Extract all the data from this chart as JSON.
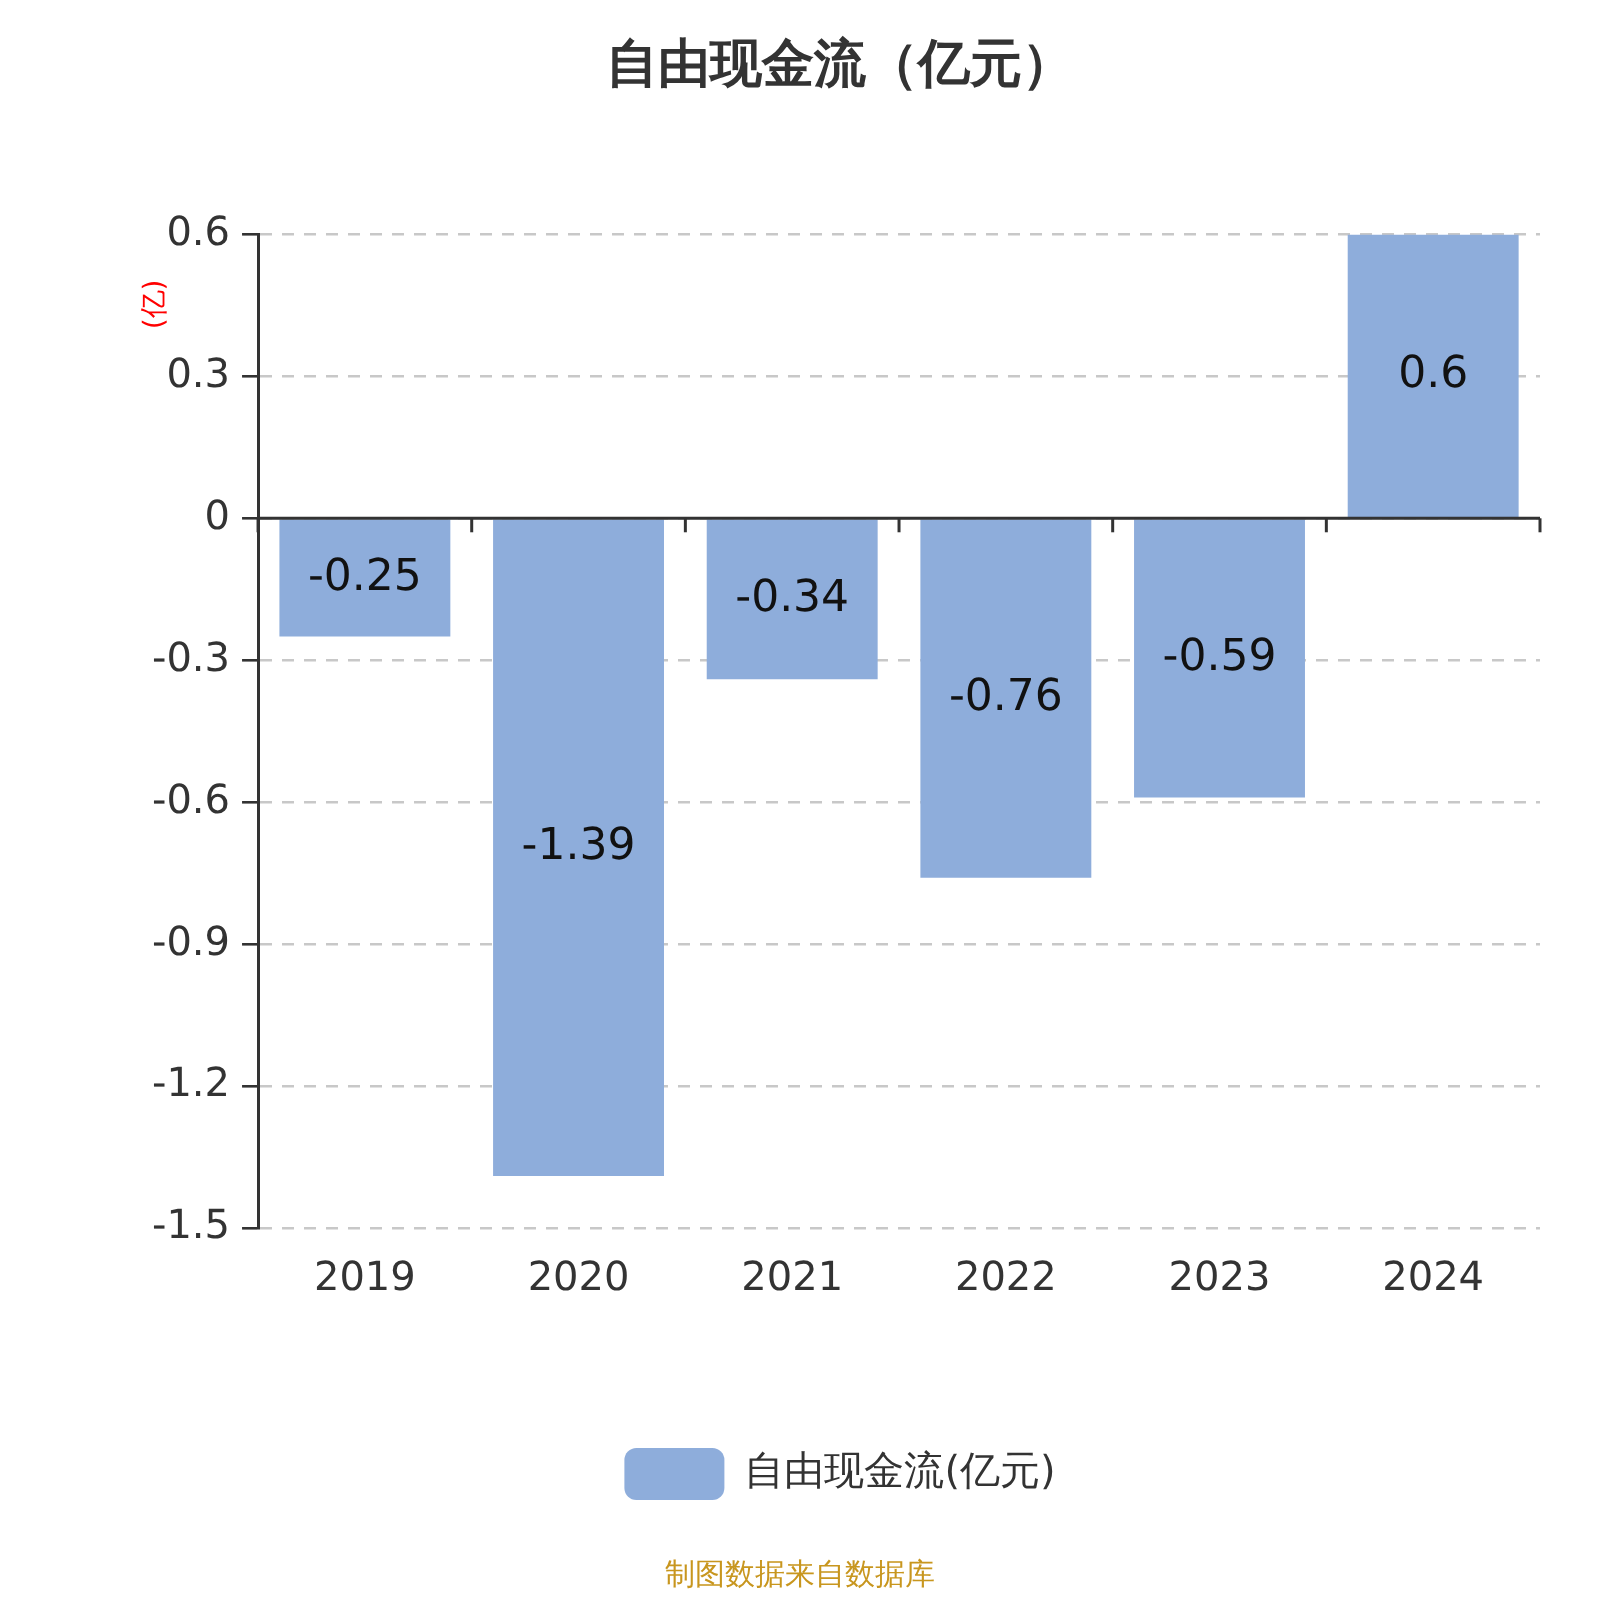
{
  "chart_data": {
    "type": "bar",
    "title": "自由现金流（亿元）",
    "ylabel": "(亿)",
    "categories": [
      "2019",
      "2020",
      "2021",
      "2022",
      "2023",
      "2024"
    ],
    "series": [
      {
        "name": "自由现金流(亿元)",
        "color": "#8eaddb",
        "values": [
          -0.25,
          -1.39,
          -0.34,
          -0.76,
          -0.59,
          0.6
        ]
      }
    ],
    "ylim": [
      -1.5,
      0.6
    ],
    "yticks": [
      {
        "value": 0.6,
        "label": "0.6"
      },
      {
        "value": 0.3,
        "label": "0.3"
      },
      0,
      {
        "value": -0.3,
        "label": "-0.3"
      },
      {
        "value": -0.6,
        "label": "-0.6"
      },
      {
        "value": -0.9,
        "label": "-0.9"
      },
      {
        "value": -1.2,
        "label": "-1.2"
      },
      {
        "value": -1.5,
        "label": "-1.5"
      }
    ],
    "grid": "y",
    "legend": "bottom",
    "data_labels": true,
    "annotations": [
      "制图数据来自数据库"
    ]
  }
}
